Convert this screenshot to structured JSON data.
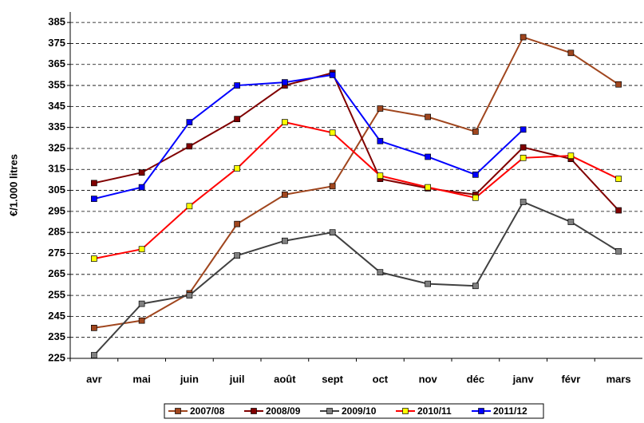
{
  "chart_data": {
    "type": "line",
    "y_label": "€/1.000 litres",
    "categories": [
      "avr",
      "mai",
      "juin",
      "juil",
      "août",
      "sept",
      "oct",
      "nov",
      "déc",
      "janv",
      "févr",
      "mars"
    ],
    "ylim": [
      225,
      390
    ],
    "yticks": [
      225,
      235,
      245,
      255,
      265,
      275,
      285,
      295,
      305,
      315,
      325,
      335,
      345,
      355,
      365,
      375,
      385
    ],
    "grid": true,
    "legend": "bottom",
    "series": [
      {
        "name": "2007/08",
        "color": "#a0461e",
        "marker_fill": "#a0461e",
        "values": [
          239.5,
          243,
          256,
          289,
          303,
          307,
          344,
          340,
          333,
          378,
          370.5,
          355.5
        ]
      },
      {
        "name": "2008/09",
        "color": "#800000",
        "marker_fill": "#800000",
        "values": [
          308.5,
          313.5,
          326,
          339,
          355,
          361,
          310.5,
          306,
          303,
          325.5,
          320,
          295.5
        ]
      },
      {
        "name": "2009/10",
        "color": "#404040",
        "marker_fill": "#808080",
        "values": [
          226.5,
          251,
          255,
          274,
          281,
          285,
          266,
          260.5,
          259.5,
          299.5,
          290,
          276
        ]
      },
      {
        "name": "2010/11",
        "color": "#ff0000",
        "marker_fill": "#ffff00",
        "values": [
          272.5,
          277,
          297.5,
          315.5,
          337.5,
          332.5,
          312,
          306.5,
          301.5,
          320.5,
          321.5,
          310.5
        ]
      },
      {
        "name": "2011/12",
        "color": "#0000ff",
        "marker_fill": "#0000ff",
        "values": [
          301,
          306.5,
          337.5,
          355,
          356.5,
          360,
          328.5,
          321,
          312.5,
          334,
          null,
          null
        ]
      }
    ]
  }
}
